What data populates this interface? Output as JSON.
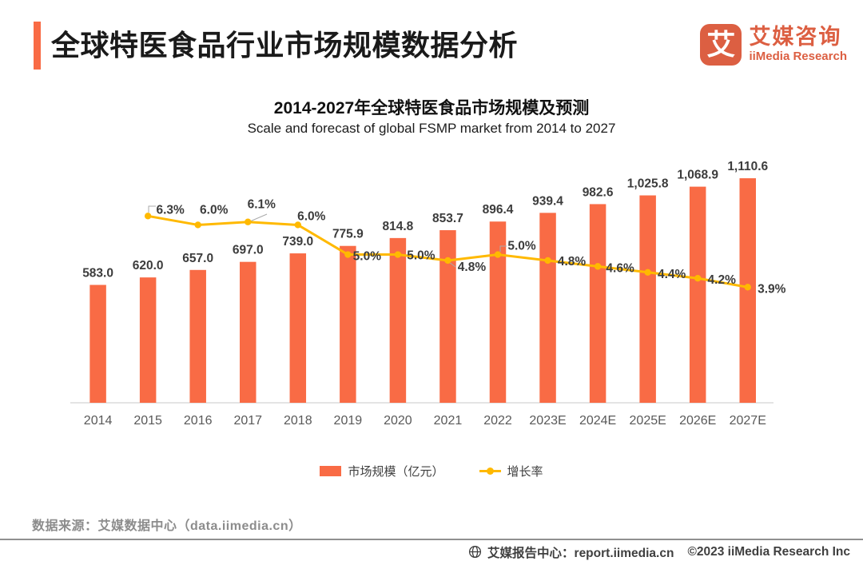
{
  "header": {
    "title": "全球特医食品行业市场规模数据分析",
    "logo": {
      "mark": "艾",
      "brand_cn": "艾媒咨询",
      "brand_en": "iiMedia Research",
      "brand_color": "#DC5F42"
    }
  },
  "chart": {
    "title": "2014-2027年全球特医食品市场规模及预测",
    "subtitle": "Scale and forecast of global FSMP market from 2014 to 2027"
  },
  "chart_data": {
    "type": "bar+line",
    "categories": [
      "2014",
      "2015",
      "2016",
      "2017",
      "2018",
      "2019",
      "2020",
      "2021",
      "2022",
      "2023E",
      "2024E",
      "2025E",
      "2026E",
      "2027E"
    ],
    "series": [
      {
        "name": "市场规模（亿元）",
        "type": "bar",
        "color": "#F96B45",
        "values": [
          583.0,
          620.0,
          657.0,
          697.0,
          739.0,
          775.9,
          814.8,
          853.7,
          896.4,
          939.4,
          982.6,
          1025.8,
          1068.9,
          1110.6
        ],
        "labels": [
          "583.0",
          "620.0",
          "657.0",
          "697.0",
          "739.0",
          "775.9",
          "814.8",
          "853.7",
          "896.4",
          "939.4",
          "982.6",
          "1,025.8",
          "1,068.9",
          "1,110.6"
        ]
      },
      {
        "name": "增长率",
        "type": "line",
        "color": "#FFB900",
        "values": [
          null,
          6.3,
          6.0,
          6.1,
          6.0,
          5.0,
          5.0,
          4.8,
          5.0,
          4.8,
          4.6,
          4.4,
          4.2,
          3.9
        ],
        "labels": [
          null,
          "6.3%",
          "6.0%",
          "6.1%",
          "6.0%",
          "5.0%",
          "5.0%",
          "4.8%",
          "5.0%",
          "4.8%",
          "4.6%",
          "4.4%",
          "4.2%",
          "3.9%"
        ]
      }
    ],
    "ylim_left": [
      0,
      1260
    ],
    "ylim_right_percent": [
      0,
      8.6
    ],
    "grid": false,
    "legend_position": "bottom",
    "axis_line_color": "#dcdcdc"
  },
  "source": "数据来源：艾媒数据中心（data.iimedia.cn）",
  "footer": {
    "report_center": "艾媒报告中心：report.iimedia.cn",
    "copyright": "©2023  iiMedia Research Inc"
  }
}
